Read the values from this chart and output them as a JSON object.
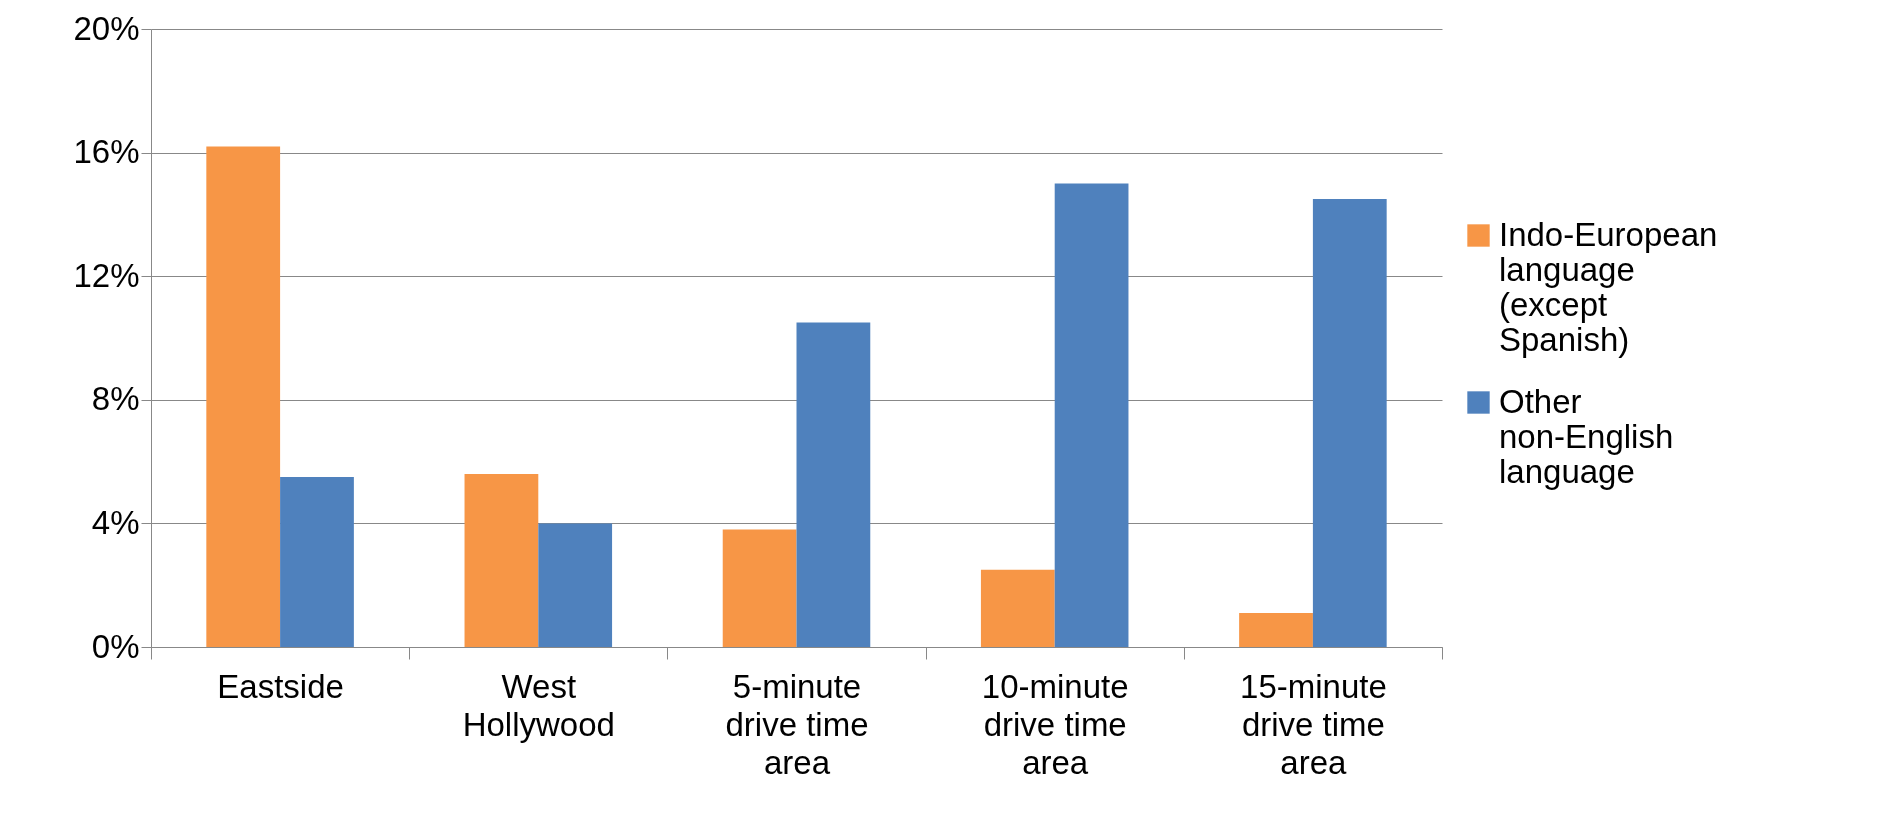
{
  "chart_data": {
    "type": "bar",
    "categories": [
      "Eastside",
      "West Hollywood",
      "5-minute drive time area",
      "10-minute drive time area",
      "15-minute drive time area"
    ],
    "series": [
      {
        "name": "Indo-European language (except Spanish)",
        "color": "#f79646",
        "values": [
          16.2,
          5.6,
          3.8,
          2.5,
          1.1
        ]
      },
      {
        "name": "Other non-English language",
        "color": "#4f81bd",
        "values": [
          5.5,
          4.0,
          10.5,
          15.0,
          14.5
        ]
      }
    ],
    "ylim": [
      0,
      20
    ],
    "yticks": [
      {
        "value": 0,
        "label": "0%"
      },
      {
        "value": 4,
        "label": "4%"
      },
      {
        "value": 8,
        "label": "8%"
      },
      {
        "value": 12,
        "label": "12%"
      },
      {
        "value": 16,
        "label": "16%"
      },
      {
        "value": 20,
        "label": "20%"
      }
    ],
    "grid": "y",
    "legend": "right"
  }
}
